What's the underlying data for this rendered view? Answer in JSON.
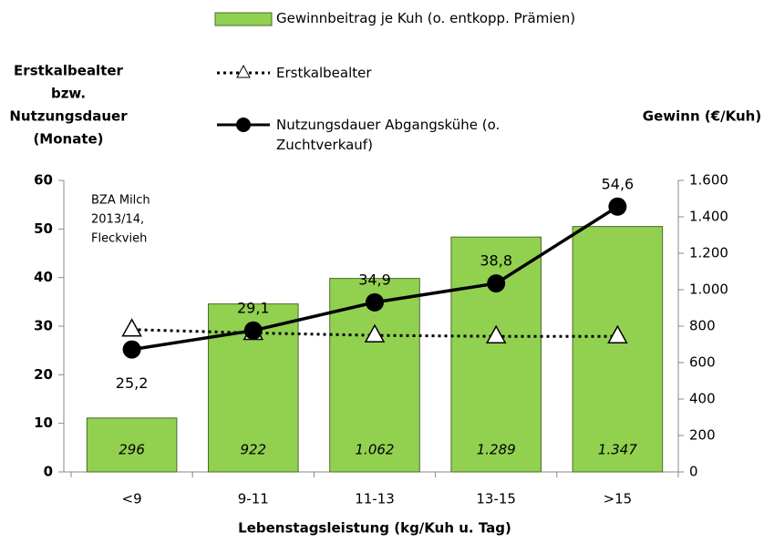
{
  "chart_data": {
    "type": "bar",
    "y_label": [
      "Erstkalbealter",
      "bzw.",
      "Nutzungsdauer",
      "(Monate)"
    ],
    "y2_label": "Gewinn (€/Kuh)",
    "x_label": "Lebenstagsleistung (kg/Kuh u. Tag)",
    "annotation": [
      "BZA Milch",
      "2013/14,",
      "Fleckvieh"
    ],
    "categories": [
      "<9",
      "9-11",
      "11-13",
      "13-15",
      ">15"
    ],
    "ylim": [
      0,
      60
    ],
    "yticks": [
      0,
      10,
      20,
      30,
      40,
      50,
      60
    ],
    "y2lim": [
      0,
      1600
    ],
    "y2ticks": [
      0,
      200,
      400,
      600,
      800,
      {
        "value": 1000,
        "label": "1.000"
      },
      {
        "value": 1200,
        "label": "1.200"
      },
      {
        "value": 1400,
        "label": "1.400"
      },
      {
        "value": 1600,
        "label": "1.600"
      }
    ],
    "series": [
      {
        "name": "Gewinnbeitrag je Kuh (o. entkopp. Prämien)",
        "type": "bar",
        "axis": "y2",
        "color": "#92d050",
        "values": [
          296,
          922,
          1062,
          1289,
          1347
        ],
        "value_labels": [
          "296",
          "922",
          "1.062",
          "1.289",
          "1.347"
        ]
      },
      {
        "name": "Erstkalbealter",
        "type": "line",
        "style": "dotted",
        "marker": "triangle",
        "color": "#000000",
        "values": [
          29.3,
          28.6,
          28.1,
          27.9,
          27.9
        ]
      },
      {
        "name": "Nutzungsdauer Abgangskühe (o. Zuchtverkauf)",
        "type": "line",
        "style": "solid",
        "marker": "circle",
        "color": "#000000",
        "values": [
          25.2,
          29.1,
          34.9,
          38.8,
          54.6
        ],
        "value_labels": [
          "25,2",
          "29,1",
          "34,9",
          "38,8",
          "54,6"
        ]
      }
    ]
  }
}
